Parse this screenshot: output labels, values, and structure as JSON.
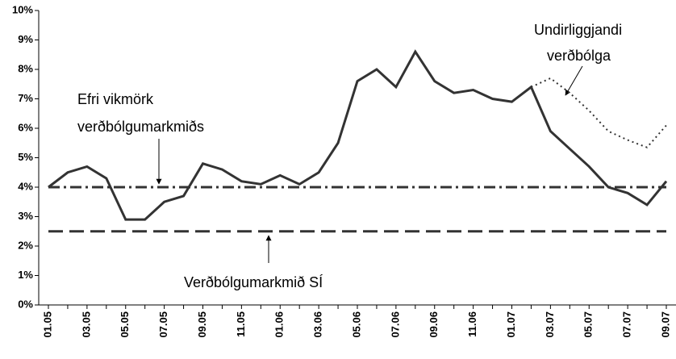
{
  "chart_data": {
    "type": "line",
    "categories": [
      "01.05",
      null,
      "03.05",
      null,
      "05.05",
      null,
      "07.05",
      null,
      "09.05",
      null,
      "11.05",
      null,
      "01.06",
      null,
      "03.06",
      null,
      "05.06",
      null,
      "07.06",
      null,
      "09.06",
      null,
      "11.06",
      null,
      "01.07",
      null,
      "03.07",
      null,
      "05.07",
      null,
      "07.07",
      null,
      "09.07"
    ],
    "series": [
      {
        "color": "#333333",
        "style": "solid",
        "values": [
          4.0,
          4.5,
          4.7,
          4.3,
          2.9,
          2.9,
          3.5,
          3.7,
          4.8,
          4.6,
          4.2,
          4.1,
          4.4,
          4.1,
          4.5,
          5.5,
          7.6,
          8.0,
          7.4,
          8.6,
          7.6,
          7.2,
          7.3,
          7.0,
          6.9,
          7.4,
          5.9,
          5.3,
          4.7,
          4.0,
          3.8,
          3.4,
          4.2
        ]
      },
      {
        "color": "#333333",
        "style": "dotted",
        "values": [
          null,
          null,
          null,
          null,
          null,
          null,
          null,
          null,
          null,
          null,
          null,
          null,
          null,
          null,
          null,
          null,
          null,
          null,
          null,
          null,
          null,
          null,
          null,
          null,
          null,
          7.4,
          7.7,
          7.2,
          6.6,
          5.9,
          5.6,
          5.35,
          6.1
        ]
      },
      {
        "color": "#333333",
        "style": "dashdot",
        "values": [
          4,
          4,
          4,
          4,
          4,
          4,
          4,
          4,
          4,
          4,
          4,
          4,
          4,
          4,
          4,
          4,
          4,
          4,
          4,
          4,
          4,
          4,
          4,
          4,
          4,
          4,
          4,
          4,
          4,
          4,
          4,
          4,
          4
        ]
      },
      {
        "color": "#333333",
        "style": "dashed",
        "values": [
          2.5,
          2.5,
          2.5,
          2.5,
          2.5,
          2.5,
          2.5,
          2.5,
          2.5,
          2.5,
          2.5,
          2.5,
          2.5,
          2.5,
          2.5,
          2.5,
          2.5,
          2.5,
          2.5,
          2.5,
          2.5,
          2.5,
          2.5,
          2.5,
          2.5,
          2.5,
          2.5,
          2.5,
          2.5,
          2.5,
          2.5,
          2.5,
          2.5
        ]
      }
    ],
    "ylim": [
      0,
      10
    ],
    "yticks": [
      {
        "value": 0,
        "label": "0%"
      },
      {
        "value": 1,
        "label": "1%"
      },
      {
        "value": 2,
        "label": "2%"
      },
      {
        "value": 3,
        "label": "3%"
      },
      {
        "value": 4,
        "label": "4%"
      },
      {
        "value": 5,
        "label": "5%"
      },
      {
        "value": 6,
        "label": "6%"
      },
      {
        "value": 7,
        "label": "7%"
      },
      {
        "value": 8,
        "label": "8%"
      },
      {
        "value": 9,
        "label": "9%"
      },
      {
        "value": 10,
        "label": "10%"
      }
    ],
    "annotations": [
      {
        "lines": [
          "Efri vikmörk",
          "verðbólgumarkmiðs"
        ]
      },
      {
        "lines": [
          "Undirliggjandi",
          "verðbólga"
        ]
      },
      {
        "lines": [
          "Verðbólgumarkmið SÍ"
        ]
      }
    ]
  }
}
